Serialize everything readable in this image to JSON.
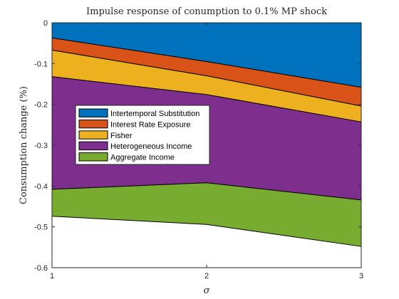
{
  "chart_data": {
    "type": "area",
    "title": "Impulse response of conumption to 0.1% MP shock",
    "xlabel": "σ",
    "ylabel": "Consumption change (%)",
    "x": [
      1,
      2,
      3
    ],
    "xticks": [
      "1",
      "2",
      "3"
    ],
    "yticks": [
      "0",
      "-0.1",
      "-0.2",
      "-0.3",
      "-0.4",
      "-0.5",
      "-0.6"
    ],
    "xlim": [
      1,
      3
    ],
    "ylim": [
      -0.6,
      0
    ],
    "grid": false,
    "legend_position": "left-center",
    "series": [
      {
        "name": "Intertemporal Substitution",
        "color": "#0072BD",
        "lower": [
          -0.037,
          -0.095,
          -0.158
        ]
      },
      {
        "name": "Interest Rate Exposure",
        "color": "#D95319",
        "lower": [
          -0.067,
          -0.13,
          -0.204
        ]
      },
      {
        "name": "Fisher",
        "color": "#EDB120",
        "lower": [
          -0.132,
          -0.176,
          -0.243
        ]
      },
      {
        "name": "Heterogeneous Income",
        "color": "#7E2F8E",
        "lower": [
          -0.408,
          -0.392,
          -0.434
        ]
      },
      {
        "name": "Aggregate Income",
        "color": "#77AC30",
        "lower": [
          -0.474,
          -0.494,
          -0.548
        ]
      }
    ]
  }
}
